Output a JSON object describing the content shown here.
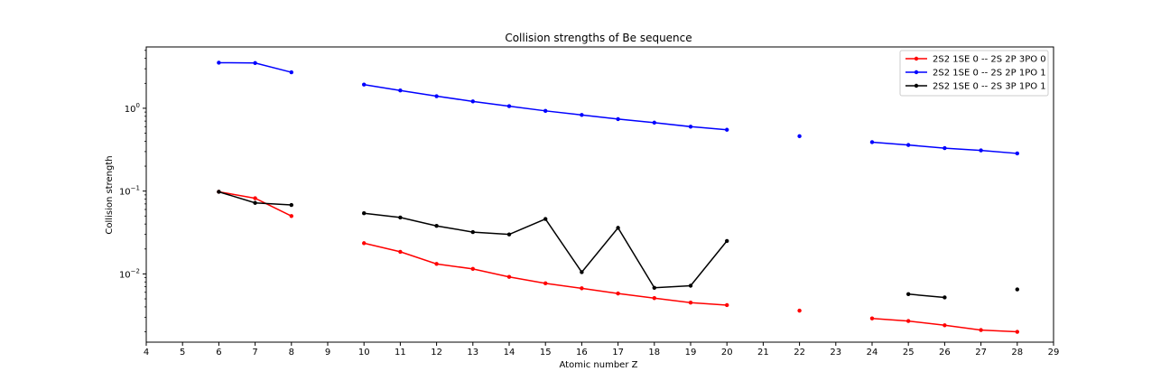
{
  "chart_data": {
    "type": "line",
    "title": "Collision strengths of Be sequence",
    "xlabel": "Atomic number Z",
    "ylabel": "Collision strength",
    "xlim": [
      4,
      29
    ],
    "ylim": [
      0.0015,
      5.5
    ],
    "yscale": "log",
    "grid": false,
    "legend_position": "top-right",
    "x_ticks": [
      4,
      5,
      6,
      7,
      8,
      9,
      10,
      11,
      12,
      13,
      14,
      15,
      16,
      17,
      18,
      19,
      20,
      21,
      22,
      23,
      24,
      25,
      26,
      27,
      28,
      29
    ],
    "y_ticks": [
      {
        "value": 0.01,
        "base": "10",
        "exp": "−2"
      },
      {
        "value": 0.1,
        "base": "10",
        "exp": "−1"
      },
      {
        "value": 1,
        "base": "10",
        "exp": "0"
      }
    ],
    "series": [
      {
        "name": "2S2 1SE 0 -- 2S 2P 3PO 0",
        "color": "#ff0000",
        "x": [
          6,
          7,
          8,
          null,
          10,
          11,
          12,
          13,
          14,
          15,
          16,
          17,
          18,
          19,
          20,
          null,
          22,
          null,
          24,
          25,
          26,
          27,
          28
        ],
        "values": [
          0.098,
          0.082,
          0.05,
          null,
          0.0235,
          0.0185,
          0.0132,
          0.0115,
          0.0092,
          0.0077,
          0.0067,
          0.0058,
          0.0051,
          0.0045,
          0.0042,
          null,
          0.0036,
          null,
          0.0029,
          0.0027,
          0.0024,
          0.0021,
          0.002
        ]
      },
      {
        "name": "2S2 1SE 0 -- 2S 2P 1PO 1",
        "color": "#0000ff",
        "x": [
          6,
          7,
          8,
          null,
          10,
          11,
          12,
          13,
          14,
          15,
          16,
          17,
          18,
          19,
          20,
          null,
          22,
          null,
          24,
          25,
          26,
          27,
          28
        ],
        "values": [
          3.55,
          3.52,
          2.72,
          null,
          1.93,
          1.64,
          1.4,
          1.21,
          1.06,
          0.93,
          0.83,
          0.74,
          0.67,
          0.6,
          0.55,
          null,
          0.46,
          null,
          0.39,
          0.36,
          0.33,
          0.31,
          0.285
        ]
      },
      {
        "name": "2S2 1SE 0 -- 2S 3P 1PO 1",
        "color": "#000000",
        "x": [
          6,
          7,
          8,
          null,
          10,
          11,
          12,
          13,
          14,
          15,
          16,
          17,
          18,
          19,
          20,
          null,
          25,
          26,
          null,
          28
        ],
        "values": [
          0.098,
          0.072,
          0.068,
          null,
          0.054,
          0.048,
          0.038,
          0.032,
          0.03,
          0.046,
          0.0105,
          0.036,
          0.0068,
          0.0072,
          0.025,
          null,
          0.0057,
          0.0052,
          null,
          0.0065
        ]
      }
    ]
  }
}
